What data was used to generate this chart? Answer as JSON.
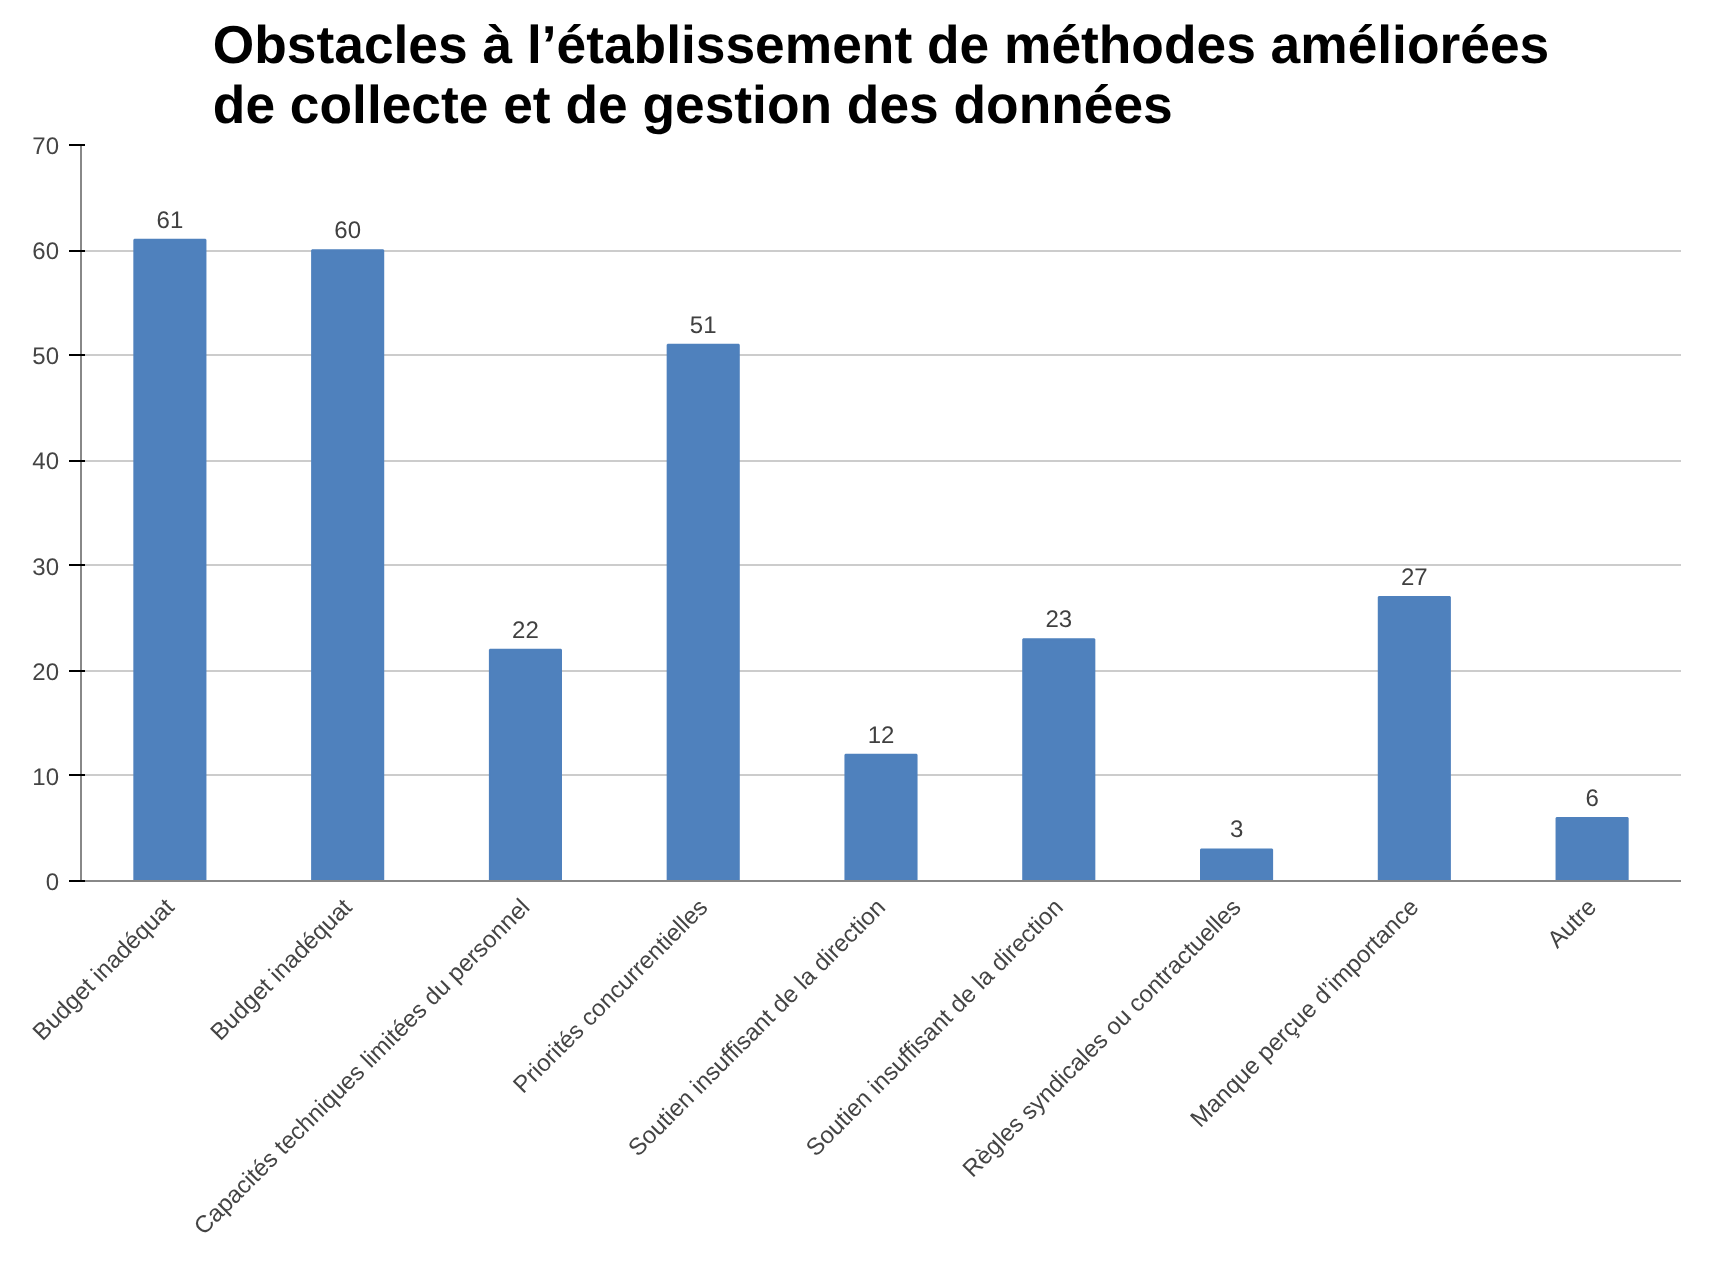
{
  "chart_data": {
    "type": "bar",
    "title": "Obstacles à l’établissement de méthodes améliorées\nde collecte et de gestion des données",
    "categories": [
      "Budget inadéquat",
      "Budget inadéquat",
      "Capacités techniques limitées du personnel",
      "Priorités concurrentielles",
      "Soutien insuffisant de la direction",
      "Soutien insuffisant de la direction",
      "Règles syndicales ou contractuelles",
      "Manque perçue d’importance",
      "Autre"
    ],
    "values": [
      61,
      60,
      22,
      51,
      12,
      23,
      3,
      27,
      6
    ],
    "color": "#4f81bd",
    "ylim": [
      0,
      70
    ],
    "yticks": [
      0,
      10,
      20,
      30,
      40,
      50,
      60,
      70
    ],
    "grid": "y",
    "data_labels": true
  }
}
